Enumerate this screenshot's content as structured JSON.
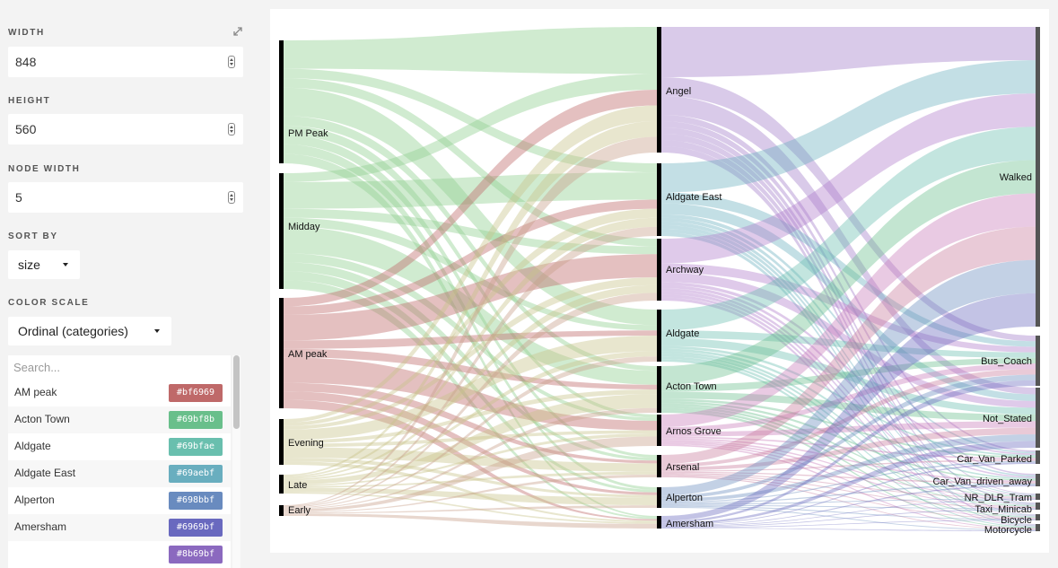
{
  "settings": {
    "width_label": "WIDTH",
    "width_value": "848",
    "height_label": "HEIGHT",
    "height_value": "560",
    "node_width_label": "NODE WIDTH",
    "node_width_value": "5",
    "sort_by_label": "SORT BY",
    "sort_by_value": "size",
    "color_scale_label": "COLOR SCALE",
    "color_scale_value": "Ordinal (categories)",
    "search_placeholder": "Search...",
    "expand_icon": "expand-icon"
  },
  "color_list": [
    {
      "name": "AM peak",
      "hex": "#bf6969"
    },
    {
      "name": "Acton Town",
      "hex": "#69bf8b"
    },
    {
      "name": "Aldgate",
      "hex": "#69bfae"
    },
    {
      "name": "Aldgate East",
      "hex": "#69aebf"
    },
    {
      "name": "Alperton",
      "hex": "#698bbf"
    },
    {
      "name": "Amersham",
      "hex": "#6969bf"
    },
    {
      "name": "",
      "hex": "#8b69bf"
    }
  ],
  "chart_data": {
    "type": "sankey",
    "columns": [
      [
        {
          "name": "PM Peak",
          "color": "#8fcf8f"
        },
        {
          "name": "Midday",
          "color": "#8fcf8f"
        },
        {
          "name": "AM peak",
          "color": "#bf6969"
        },
        {
          "name": "Evening",
          "color": "#c8c48a"
        },
        {
          "name": "Late",
          "color": "#c8c48a"
        },
        {
          "name": "Early",
          "color": "#c8a08a"
        }
      ],
      [
        {
          "name": "Angel",
          "color": "#a07ac8"
        },
        {
          "name": "Aldgate East",
          "color": "#69aebf"
        },
        {
          "name": "Archway",
          "color": "#b07acb"
        },
        {
          "name": "Aldgate",
          "color": "#69bfae"
        },
        {
          "name": "Acton Town",
          "color": "#69bf8b"
        },
        {
          "name": "Arnos Grove",
          "color": "#c87ab8"
        },
        {
          "name": "Arsenal",
          "color": "#c87a9a"
        },
        {
          "name": "Alperton",
          "color": "#698bbf"
        },
        {
          "name": "Amersham",
          "color": "#6969bf"
        }
      ],
      [
        {
          "name": "Walked"
        },
        {
          "name": "Bus_Coach"
        },
        {
          "name": "Not_Stated"
        },
        {
          "name": "Car_Van_Parked"
        },
        {
          "name": "Car_Van_driven_away"
        },
        {
          "name": "NR_DLR_Tram"
        },
        {
          "name": "Taxi_Minicab"
        },
        {
          "name": "Bicycle"
        },
        {
          "name": "Motorcycle"
        }
      ]
    ]
  }
}
